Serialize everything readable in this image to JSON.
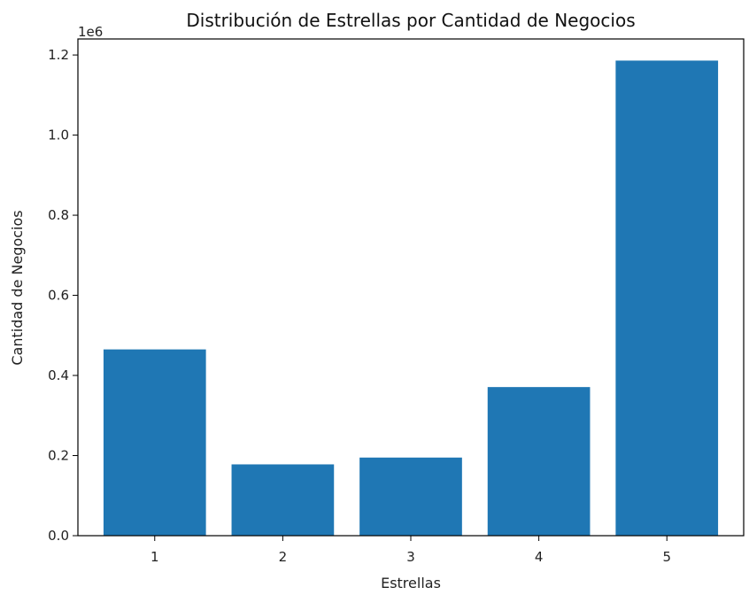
{
  "chart_data": {
    "type": "bar",
    "title": "Distribución de Estrellas por Cantidad de Negocios",
    "xlabel": "Estrellas",
    "ylabel": "Cantidad de Negocios",
    "y_offset_label": "1e6",
    "categories": [
      "1",
      "2",
      "3",
      "4",
      "5"
    ],
    "values": [
      465000,
      178000,
      195000,
      371000,
      1186000
    ],
    "ylim": [
      0,
      1240000
    ],
    "yticks": [
      0,
      200000,
      400000,
      600000,
      800000,
      1000000,
      1200000
    ],
    "ytick_labels": [
      "0.0",
      "0.2",
      "0.4",
      "0.6",
      "0.8",
      "1.0",
      "1.2"
    ],
    "bar_color": "#1f77b4",
    "grid": false
  }
}
